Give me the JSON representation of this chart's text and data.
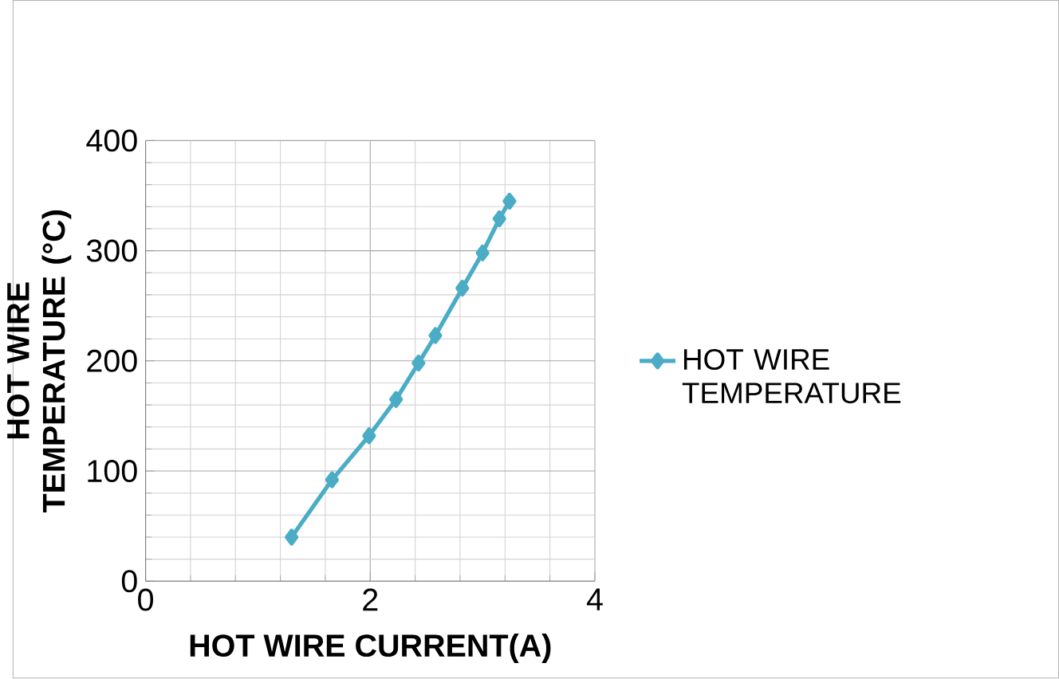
{
  "chart_data": {
    "type": "line",
    "xlabel": "HOT  WIRE CURRENT(A)",
    "ylabel": "HOT WIRE TEMPERATURE (°C)",
    "series": [
      {
        "name": "HOT WIRE TEMPERATURE",
        "color": "#4bacc6",
        "x": [
          1.3,
          1.66,
          1.99,
          2.23,
          2.43,
          2.58,
          2.82,
          3.0,
          3.15,
          3.24
        ],
        "values": [
          40,
          92,
          132,
          165,
          198,
          223,
          266,
          298,
          329,
          345
        ]
      }
    ],
    "xlim": [
      0,
      4
    ],
    "xticks": [
      0,
      2,
      4
    ],
    "ylim": [
      0,
      400
    ],
    "yticks": [
      0,
      100,
      200,
      300,
      400
    ],
    "grid": true,
    "legend": "right",
    "marker": "diamond",
    "line_style": "solid"
  }
}
